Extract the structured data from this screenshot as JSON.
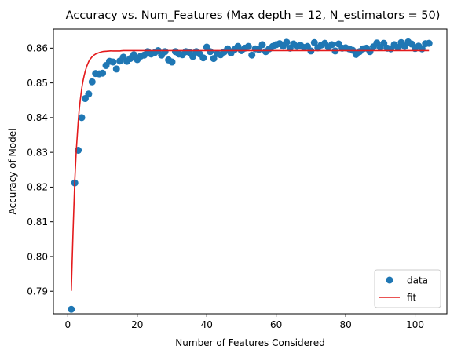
{
  "chart_data": {
    "type": "scatter",
    "title": "Accuracy vs. Num_Features (Max depth = 12, N_estimators = 50)",
    "xlabel": "Number of Features Considered",
    "ylabel": "Accuracy of Model",
    "xlim": [
      -4.15,
      109.15
    ],
    "ylim": [
      0.7835,
      0.8655
    ],
    "xticks": [
      0,
      20,
      40,
      60,
      80,
      100
    ],
    "yticks": [
      0.79,
      0.8,
      0.81,
      0.82,
      0.83,
      0.84,
      0.85,
      0.86
    ],
    "grid": false,
    "legend_position": "lower-right",
    "series": [
      {
        "name": "data",
        "kind": "scatter",
        "color": "#1f77b4",
        "x": [
          1,
          2,
          3,
          4,
          5,
          6,
          7,
          8,
          9,
          10,
          11,
          12,
          13,
          14,
          15,
          16,
          17,
          18,
          19,
          20,
          21,
          22,
          23,
          24,
          25,
          26,
          27,
          28,
          29,
          30,
          31,
          32,
          33,
          34,
          35,
          36,
          37,
          38,
          39,
          40,
          41,
          42,
          43,
          44,
          45,
          46,
          47,
          48,
          49,
          50,
          51,
          52,
          53,
          54,
          55,
          56,
          57,
          58,
          59,
          60,
          61,
          62,
          63,
          64,
          65,
          66,
          67,
          68,
          69,
          70,
          71,
          72,
          73,
          74,
          75,
          76,
          77,
          78,
          79,
          80,
          81,
          82,
          83,
          84,
          85,
          86,
          87,
          88,
          89,
          90,
          91,
          92,
          93,
          94,
          95,
          96,
          97,
          98,
          99,
          100,
          101,
          102,
          103,
          104
        ],
        "y": [
          0.7848,
          0.8212,
          0.8306,
          0.84,
          0.8455,
          0.8468,
          0.8503,
          0.8527,
          0.8526,
          0.8528,
          0.855,
          0.8562,
          0.856,
          0.854,
          0.8563,
          0.8574,
          0.8562,
          0.857,
          0.8581,
          0.8567,
          0.8577,
          0.858,
          0.859,
          0.8583,
          0.8587,
          0.8593,
          0.858,
          0.859,
          0.8566,
          0.856,
          0.859,
          0.8583,
          0.8581,
          0.859,
          0.8588,
          0.8576,
          0.859,
          0.8583,
          0.8572,
          0.8603,
          0.859,
          0.857,
          0.8584,
          0.8581,
          0.8589,
          0.8598,
          0.8586,
          0.8596,
          0.8605,
          0.8593,
          0.86,
          0.8605,
          0.858,
          0.8598,
          0.8596,
          0.861,
          0.859,
          0.8598,
          0.8605,
          0.861,
          0.8613,
          0.8606,
          0.8617,
          0.86,
          0.8612,
          0.8605,
          0.8608,
          0.8602,
          0.8605,
          0.8592,
          0.8616,
          0.8601,
          0.8609,
          0.8614,
          0.8603,
          0.861,
          0.8592,
          0.8612,
          0.86,
          0.8601,
          0.8598,
          0.8594,
          0.8582,
          0.859,
          0.8598,
          0.86,
          0.859,
          0.8604,
          0.8615,
          0.8602,
          0.8614,
          0.86,
          0.8598,
          0.861,
          0.8602,
          0.8616,
          0.8605,
          0.8618,
          0.8612,
          0.8599,
          0.8606,
          0.8598,
          0.8613,
          0.8614
        ]
      },
      {
        "name": "fit",
        "kind": "line",
        "color": "#e41a1c",
        "x": [
          1,
          2,
          3,
          4,
          5,
          6,
          7,
          8,
          9,
          10,
          11,
          12,
          13,
          14,
          15,
          16,
          18,
          20,
          25,
          30,
          40,
          60,
          80,
          104
        ],
        "y": [
          0.7901,
          0.8218,
          0.839,
          0.8483,
          0.8533,
          0.8561,
          0.8575,
          0.8583,
          0.8587,
          0.859,
          0.8591,
          0.8592,
          0.8592,
          0.8592,
          0.8592,
          0.8593,
          0.8593,
          0.8593,
          0.8593,
          0.8593,
          0.8593,
          0.8593,
          0.8593,
          0.8593
        ]
      }
    ]
  }
}
